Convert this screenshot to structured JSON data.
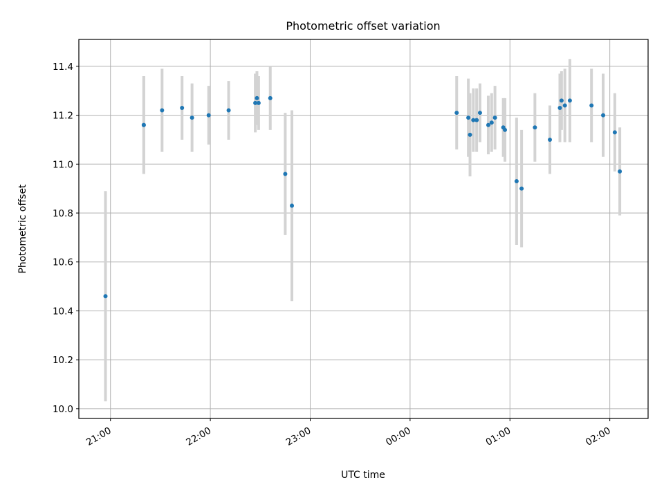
{
  "chart_data": {
    "type": "scatter",
    "title": "Photometric offset variation",
    "xlabel": "UTC time",
    "ylabel": "Photometric offset",
    "x_axis_kind": "time",
    "x_reference_date": "",
    "x_range": [
      "20:41",
      "02:23"
    ],
    "ylim": [
      9.96,
      11.51
    ],
    "x_ticks": [
      {
        "value": "21:00",
        "label": "21:00"
      },
      {
        "value": "22:00",
        "label": "22:00"
      },
      {
        "value": "23:00",
        "label": "23:00"
      },
      {
        "value": "00:00",
        "label": "00:00"
      },
      {
        "value": "01:00",
        "label": "01:00"
      },
      {
        "value": "02:00",
        "label": "02:00"
      }
    ],
    "y_ticks": [
      10.0,
      10.2,
      10.4,
      10.6,
      10.8,
      11.0,
      11.2,
      11.4
    ],
    "y_tick_labels": [
      "10.0",
      "10.2",
      "10.4",
      "10.6",
      "10.8",
      "11.0",
      "11.2",
      "11.4"
    ],
    "grid": true,
    "legend": "none",
    "colors": {
      "point": "#1f77b4",
      "errorbar": "#d3d3d3",
      "grid": "#b0b0b0"
    },
    "series": [
      {
        "points": [
          {
            "x": "20:57",
            "y": 10.46,
            "yerr": 0.43
          },
          {
            "x": "21:20",
            "y": 11.16,
            "yerr": 0.2
          },
          {
            "x": "21:20",
            "y": 11.16,
            "yerr": 0.2
          },
          {
            "x": "21:31",
            "y": 11.22,
            "yerr": 0.17
          },
          {
            "x": "21:43",
            "y": 11.23,
            "yerr": 0.13
          },
          {
            "x": "21:49",
            "y": 11.19,
            "yerr": 0.14
          },
          {
            "x": "21:59",
            "y": 11.2,
            "yerr": 0.12
          },
          {
            "x": "22:11",
            "y": 11.22,
            "yerr": 0.12
          },
          {
            "x": "22:27",
            "y": 11.25,
            "yerr": 0.12
          },
          {
            "x": "22:28",
            "y": 11.27,
            "yerr": 0.11
          },
          {
            "x": "22:29",
            "y": 11.25,
            "yerr": 0.11
          },
          {
            "x": "22:36",
            "y": 11.27,
            "yerr": 0.13
          },
          {
            "x": "22:45",
            "y": 10.96,
            "yerr": 0.25
          },
          {
            "x": "22:49",
            "y": 10.83,
            "yerr": 0.39
          },
          {
            "x": "00:28",
            "y": 11.21,
            "yerr": 0.15
          },
          {
            "x": "00:35",
            "y": 11.19,
            "yerr": 0.16
          },
          {
            "x": "00:36",
            "y": 11.12,
            "yerr": 0.17
          },
          {
            "x": "00:38",
            "y": 11.18,
            "yerr": 0.13
          },
          {
            "x": "00:40",
            "y": 11.18,
            "yerr": 0.13
          },
          {
            "x": "00:42",
            "y": 11.21,
            "yerr": 0.12
          },
          {
            "x": "00:47",
            "y": 11.16,
            "yerr": 0.12
          },
          {
            "x": "00:49",
            "y": 11.17,
            "yerr": 0.12
          },
          {
            "x": "00:51",
            "y": 11.19,
            "yerr": 0.13
          },
          {
            "x": "00:56",
            "y": 11.15,
            "yerr": 0.12
          },
          {
            "x": "00:57",
            "y": 11.14,
            "yerr": 0.13
          },
          {
            "x": "01:04",
            "y": 10.93,
            "yerr": 0.26
          },
          {
            "x": "01:07",
            "y": 10.9,
            "yerr": 0.24
          },
          {
            "x": "01:15",
            "y": 11.15,
            "yerr": 0.14
          },
          {
            "x": "01:24",
            "y": 11.1,
            "yerr": 0.14
          },
          {
            "x": "01:30",
            "y": 11.23,
            "yerr": 0.14
          },
          {
            "x": "01:31",
            "y": 11.26,
            "yerr": 0.12
          },
          {
            "x": "01:33",
            "y": 11.24,
            "yerr": 0.15
          },
          {
            "x": "01:36",
            "y": 11.26,
            "yerr": 0.17
          },
          {
            "x": "01:49",
            "y": 11.24,
            "yerr": 0.15
          },
          {
            "x": "01:56",
            "y": 11.2,
            "yerr": 0.17
          },
          {
            "x": "02:03",
            "y": 11.13,
            "yerr": 0.16
          },
          {
            "x": "02:06",
            "y": 10.97,
            "yerr": 0.18
          }
        ]
      }
    ]
  }
}
